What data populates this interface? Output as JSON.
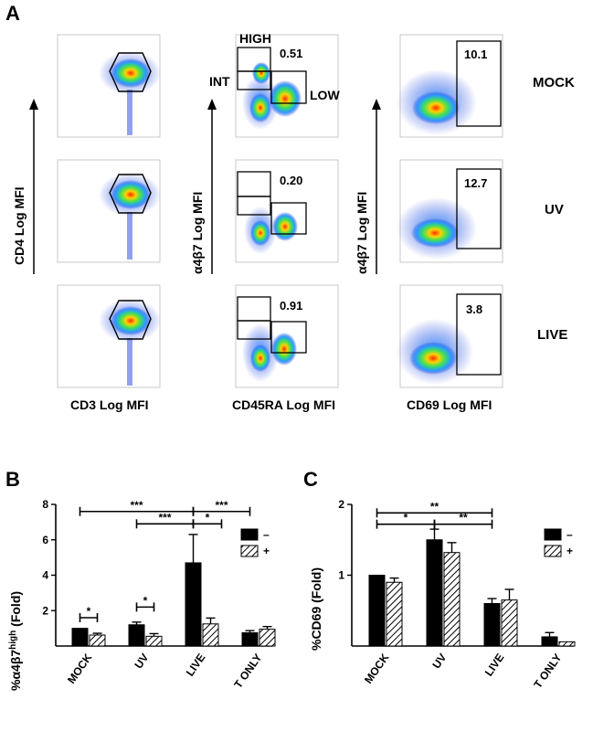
{
  "panel_labels": {
    "a": "A",
    "b": "B",
    "c": "C"
  },
  "flow": {
    "col1": {
      "xlabel": "CD3 Log MFI",
      "ylabel": "CD4 Log MFI"
    },
    "col2": {
      "xlabel": "CD45RA Log MFI",
      "ylabel": "α4β7 Log MFI",
      "gate_high": "HIGH",
      "gate_int": "INT",
      "gate_low": "LOW"
    },
    "col3": {
      "xlabel": "CD69 Log MFI",
      "ylabel": "α4β7 Log MFI"
    },
    "rows": [
      {
        "condition": "MOCK",
        "high_pct": "0.51",
        "cd69_pct": "10.1"
      },
      {
        "condition": "UV",
        "high_pct": "0.20",
        "cd69_pct": "12.7"
      },
      {
        "condition": "LIVE",
        "high_pct": "0.91",
        "cd69_pct": "3.8"
      }
    ]
  },
  "chart_data": [
    {
      "type": "bar",
      "panel": "B",
      "ylabel_main": "%α4β7",
      "ylabel_sup": "high",
      "ylabel_tail": " (Fold)",
      "xlabel": "",
      "ylim": [
        0,
        8
      ],
      "yticks": [
        "2",
        "4",
        "6",
        "8"
      ],
      "ytick_values": [
        2,
        4,
        6,
        8
      ],
      "categories": [
        "MOCK",
        "UV",
        "LIVE",
        "T ONLY"
      ],
      "legend": {
        "placement": "top-right",
        "labels": [
          "–",
          "+"
        ]
      },
      "series": [
        {
          "name": "–",
          "fill": "#000000",
          "values": [
            1.0,
            1.2,
            4.7,
            0.75
          ],
          "errors": [
            0.0,
            0.15,
            1.6,
            0.12
          ]
        },
        {
          "name": "+",
          "fill": "hatch",
          "values": [
            0.62,
            0.55,
            1.25,
            0.95
          ],
          "errors": [
            0.1,
            0.15,
            0.33,
            0.15
          ]
        }
      ],
      "significance": [
        {
          "label": "***",
          "from": 0,
          "to": 2,
          "y": 7.6
        },
        {
          "label": "***",
          "from": 2,
          "to": 3,
          "y": 7.6
        },
        {
          "label": "***",
          "from": 1,
          "to": 2,
          "y": 6.9
        },
        {
          "label": "*",
          "from": 2,
          "to": 2.5,
          "y": 6.9
        },
        {
          "label": "*",
          "from": -0.2,
          "to": 0.2,
          "y": 1.6,
          "within": true
        },
        {
          "label": "*",
          "from": 0.8,
          "to": 1.2,
          "y": 2.2,
          "within": true
        }
      ]
    },
    {
      "type": "bar",
      "panel": "C",
      "ylabel_main": "%CD69 (Fold)",
      "xlabel": "",
      "ylim": [
        0,
        2
      ],
      "yticks": [
        "1",
        "2"
      ],
      "ytick_values": [
        1,
        2
      ],
      "categories": [
        "MOCK",
        "UV",
        "LIVE",
        "T ONLY"
      ],
      "legend": {
        "placement": "top-right",
        "labels": [
          "–",
          "+"
        ]
      },
      "series": [
        {
          "name": "–",
          "fill": "#000000",
          "values": [
            1.0,
            1.5,
            0.6,
            0.13
          ],
          "errors": [
            0.0,
            0.15,
            0.07,
            0.06
          ]
        },
        {
          "name": "+",
          "fill": "hatch",
          "values": [
            0.9,
            1.32,
            0.65,
            0.06
          ],
          "errors": [
            0.06,
            0.14,
            0.15,
            0.0
          ]
        }
      ],
      "significance": [
        {
          "label": "**",
          "from": 0,
          "to": 2,
          "y": 1.88
        },
        {
          "label": "*",
          "from": 0,
          "to": 1,
          "y": 1.72
        },
        {
          "label": "**",
          "from": 1,
          "to": 2,
          "y": 1.72
        }
      ]
    }
  ]
}
